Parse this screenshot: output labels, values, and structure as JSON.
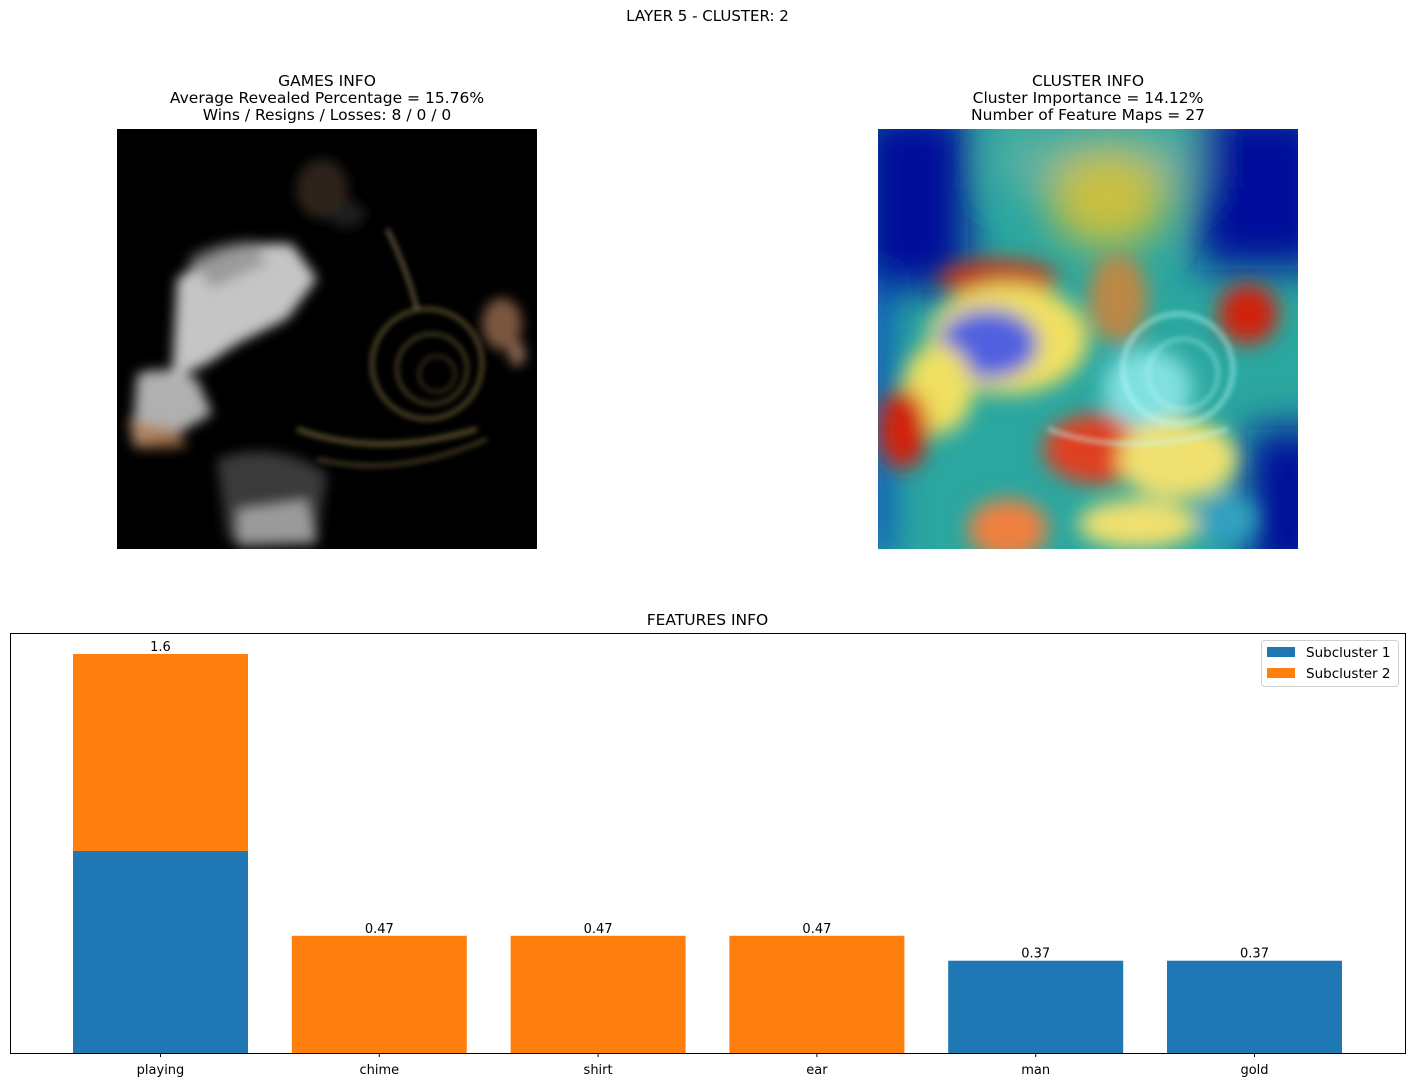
{
  "suptitle": "LAYER 5 - CLUSTER: 2",
  "games_info": {
    "title": "GAMES INFO",
    "line1": "Average Revealed Percentage = 15.76%",
    "line2": "Wins / Resigns / Losses: 8 / 0 / 0"
  },
  "cluster_info": {
    "title": "CLUSTER INFO",
    "line1": "Cluster Importance = 14.12%",
    "line2": "Number of Feature Maps = 27"
  },
  "colors": {
    "subcluster_1": "#1f77b4",
    "subcluster_2": "#ff7f0e"
  },
  "chart_data": {
    "type": "bar",
    "stacked": true,
    "title": "FEATURES INFO",
    "xlabel": "",
    "ylabel": "",
    "categories": [
      "playing",
      "chime",
      "shirt",
      "ear",
      "man",
      "gold"
    ],
    "series": [
      {
        "name": "Subcluster 1",
        "values": [
          0.81,
          0,
          0,
          0,
          0.37,
          0.37
        ]
      },
      {
        "name": "Subcluster 2",
        "values": [
          0.79,
          0.47,
          0.47,
          0.47,
          0,
          0
        ]
      }
    ],
    "totals": [
      1.6,
      0.47,
      0.47,
      0.47,
      0.37,
      0.37
    ],
    "total_labels": [
      "1.6",
      "0.47",
      "0.47",
      "0.47",
      "0.37",
      "0.37"
    ],
    "ylim": [
      0,
      1.68
    ],
    "y_ticks_visible": false,
    "grid": false,
    "legend_position": "top-right"
  }
}
